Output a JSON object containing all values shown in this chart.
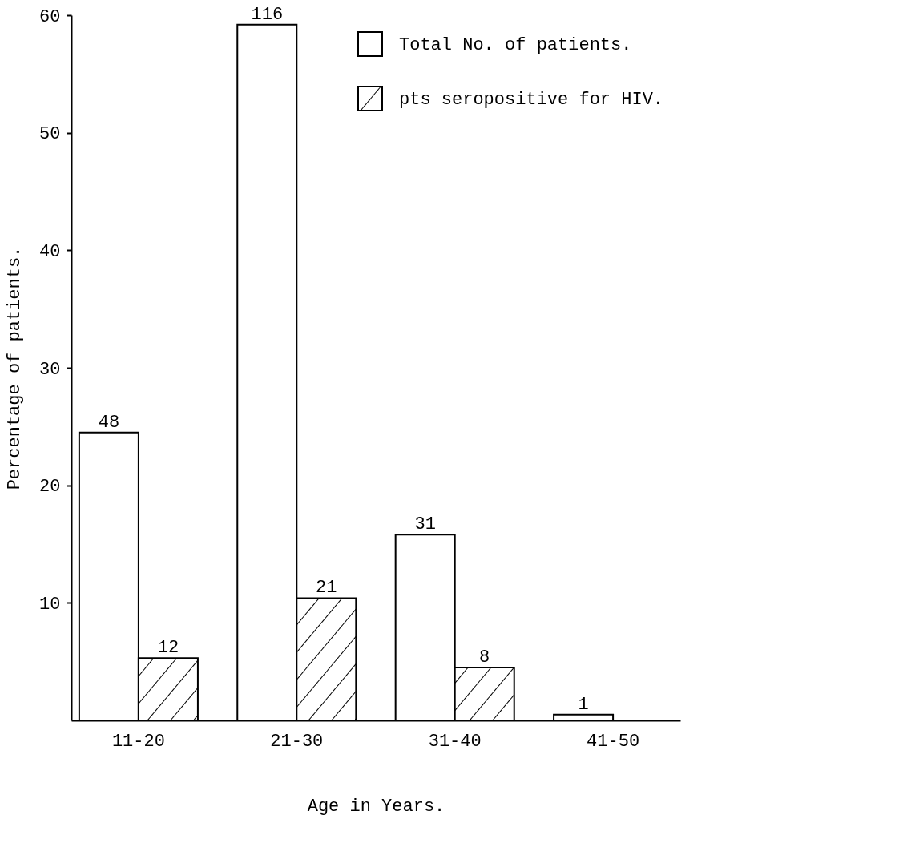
{
  "chart_data": {
    "type": "bar",
    "xlabel": "Age in Years.",
    "ylabel": "Percentage of patients.",
    "categories": [
      "11-20",
      "21-30",
      "31-40",
      "41-50"
    ],
    "series": [
      {
        "name": "Total No. of patients.",
        "color": "#ffffff",
        "values": [
          24.5,
          59.2,
          15.8,
          0.5
        ]
      },
      {
        "name": "pts seropositive for HIV.",
        "color": "#000000",
        "values": [
          5.3,
          10.4,
          4.5,
          null
        ]
      }
    ],
    "annotations": [
      {
        "text": "48",
        "x": "11-20",
        "y": 24.5
      },
      {
        "text": "116",
        "x": "21-30",
        "y": 59.2
      },
      {
        "text": "31",
        "x": "31-40",
        "y": 15.8
      },
      {
        "text": "1",
        "x": "41-50",
        "y": 0.5
      },
      {
        "text": "12",
        "x": "11-20",
        "y": 5.3
      },
      {
        "text": "21",
        "x": "21-30",
        "y": 10.4
      },
      {
        "text": "8",
        "x": "31-40",
        "y": 4.5
      }
    ],
    "ylim": [
      0,
      60
    ],
    "yticks": [
      10,
      20,
      30,
      40,
      50,
      60
    ],
    "grid": false,
    "legend": "top right"
  }
}
